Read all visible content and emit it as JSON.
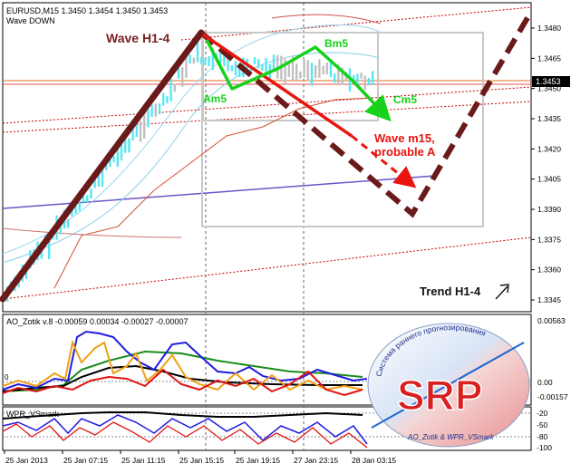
{
  "main": {
    "symbol_line": "EURUSD,M15  1.3450 1.3454 1.3450 1.3453",
    "indicator_name": "Wave DOWN",
    "current_price": "1.3453",
    "price_ticks": [
      "1.3480",
      "1.3465",
      "1.3450",
      "1.3435",
      "1.3420",
      "1.3405",
      "1.3390",
      "1.3375",
      "1.3360",
      "1.3345"
    ],
    "annotations": {
      "wave_h1": "Wave H1-4",
      "am5": "Am5",
      "bm5": "Bm5",
      "cm5": "Cm5",
      "wave_m15_line1": "Wave m15,",
      "wave_m15_line2": "probable A",
      "trend": "Trend H1-4"
    }
  },
  "ao_panel": {
    "title": "AO_Zotik v.8 -0.00059 0.00034 -0.00027 -0.00007",
    "ticks": [
      "0.00563",
      "0.00",
      "-0.00157"
    ],
    "zero_label": "0"
  },
  "wpr_panel": {
    "title": "WPR_VSmark",
    "ticks": [
      "-20",
      "-50",
      "-80",
      "-100"
    ]
  },
  "time_axis": [
    "25 Jan 2013",
    "25 Jan 07:15",
    "25 Jan 11:15",
    "25 Jan 15:15",
    "25 Jan 19:15",
    "27 Jan 23:15",
    "28 Jan 03:15"
  ],
  "logo": {
    "letters": "SRP",
    "arc_text": "Система раннего прогнозирования",
    "bottom_text": "AO_Zotik & WPR_VSmark"
  },
  "colors": {
    "wave_h1": "#6b1a1a",
    "wave_m15": "#e8160f",
    "green_wave": "#17d11a",
    "price_label_bg": "#000000",
    "candles": "#58e6f2",
    "ao_blue": "#1f1ce0",
    "ao_orange": "#f0a014",
    "ao_green": "#1a8c1a",
    "ao_red": "#e01414"
  }
}
